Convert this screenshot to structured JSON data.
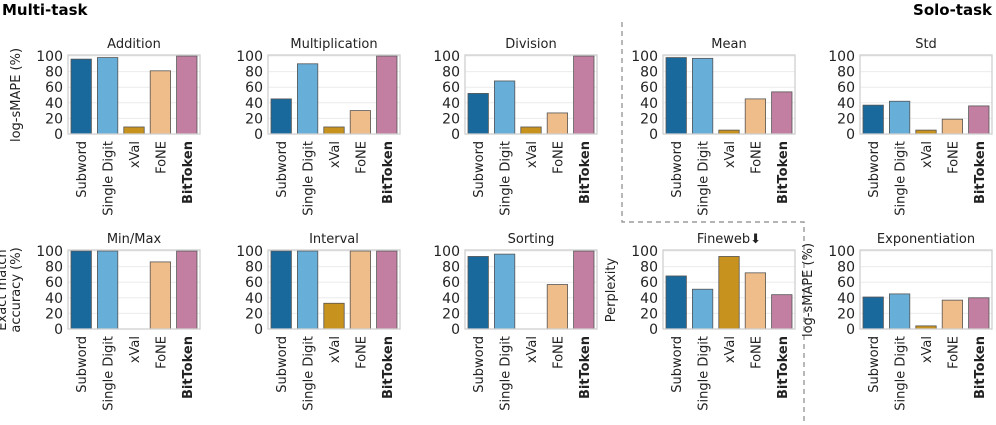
{
  "header": {
    "left": "Multi-task",
    "right": "Solo-task"
  },
  "colors": {
    "Subword": "#19699c",
    "Single Digit": "#67aed8",
    "xVal": "#c8921f",
    "FoNE": "#eebd8a",
    "BitToken": "#c27fa2"
  },
  "chart_data": [
    {
      "type": "bar",
      "title": "Addition",
      "ylabel": "log-sMAPE (%)",
      "ylim": [
        0,
        100
      ],
      "yticks": [
        0,
        20,
        40,
        60,
        80,
        100
      ],
      "categories": [
        "Subword",
        "Single Digit",
        "xVal",
        "FoNE",
        "BitToken"
      ],
      "values": [
        96,
        98,
        9,
        81,
        100
      ]
    },
    {
      "type": "bar",
      "title": "Multiplication",
      "ylabel": "",
      "ylim": [
        0,
        100
      ],
      "yticks": [
        0,
        20,
        40,
        60,
        80,
        100
      ],
      "categories": [
        "Subword",
        "Single Digit",
        "xVal",
        "FoNE",
        "BitToken"
      ],
      "values": [
        45,
        90,
        9,
        30,
        100
      ]
    },
    {
      "type": "bar",
      "title": "Division",
      "ylabel": "",
      "ylim": [
        0,
        100
      ],
      "yticks": [
        0,
        20,
        40,
        60,
        80,
        100
      ],
      "categories": [
        "Subword",
        "Single Digit",
        "xVal",
        "FoNE",
        "BitToken"
      ],
      "values": [
        52,
        68,
        9,
        27,
        100
      ]
    },
    {
      "type": "bar",
      "title": "Mean",
      "ylabel": "",
      "ylim": [
        0,
        100
      ],
      "yticks": [
        0,
        20,
        40,
        60,
        80,
        100
      ],
      "categories": [
        "Subword",
        "Single Digit",
        "xVal",
        "FoNE",
        "BitToken"
      ],
      "values": [
        98,
        97,
        5,
        45,
        54
      ]
    },
    {
      "type": "bar",
      "title": "Std",
      "ylabel": "",
      "ylim": [
        0,
        100
      ],
      "yticks": [
        0,
        20,
        40,
        60,
        80,
        100
      ],
      "categories": [
        "Subword",
        "Single Digit",
        "xVal",
        "FoNE",
        "BitToken"
      ],
      "values": [
        37,
        42,
        5,
        19,
        36
      ]
    },
    {
      "type": "bar",
      "title": "Min/Max",
      "ylabel": "Exact match|accuracy (%)",
      "ylim": [
        0,
        100
      ],
      "yticks": [
        0,
        20,
        40,
        60,
        80,
        100
      ],
      "categories": [
        "Subword",
        "Single Digit",
        "xVal",
        "FoNE",
        "BitToken"
      ],
      "values": [
        100,
        100,
        0,
        86,
        100
      ]
    },
    {
      "type": "bar",
      "title": "Interval",
      "ylabel": "",
      "ylim": [
        0,
        100
      ],
      "yticks": [
        0,
        20,
        40,
        60,
        80,
        100
      ],
      "categories": [
        "Subword",
        "Single Digit",
        "xVal",
        "FoNE",
        "BitToken"
      ],
      "values": [
        100,
        100,
        33,
        100,
        100
      ]
    },
    {
      "type": "bar",
      "title": "Sorting",
      "ylabel": "",
      "ylim": [
        0,
        100
      ],
      "yticks": [
        0,
        20,
        40,
        60,
        80,
        100
      ],
      "categories": [
        "Subword",
        "Single Digit",
        "xVal",
        "FoNE",
        "BitToken"
      ],
      "values": [
        93,
        96,
        0,
        57,
        100
      ]
    },
    {
      "type": "bar",
      "title": "Fineweb⬇",
      "ylabel": "Perplexity",
      "ylim": [
        0,
        100
      ],
      "yticks": [
        0,
        20,
        40,
        60,
        80,
        100
      ],
      "categories": [
        "Subword",
        "Single Digit",
        "xVal",
        "FoNE",
        "BitToken"
      ],
      "values": [
        68,
        51,
        93,
        72,
        44
      ]
    },
    {
      "type": "bar",
      "title": "Exponentiation",
      "ylabel": "log-sMAPE (%)",
      "ylim": [
        0,
        100
      ],
      "yticks": [
        0,
        20,
        40,
        60,
        80,
        100
      ],
      "categories": [
        "Subword",
        "Single Digit",
        "xVal",
        "FoNE",
        "BitToken"
      ],
      "values": [
        41,
        45,
        4,
        37,
        40
      ]
    }
  ]
}
